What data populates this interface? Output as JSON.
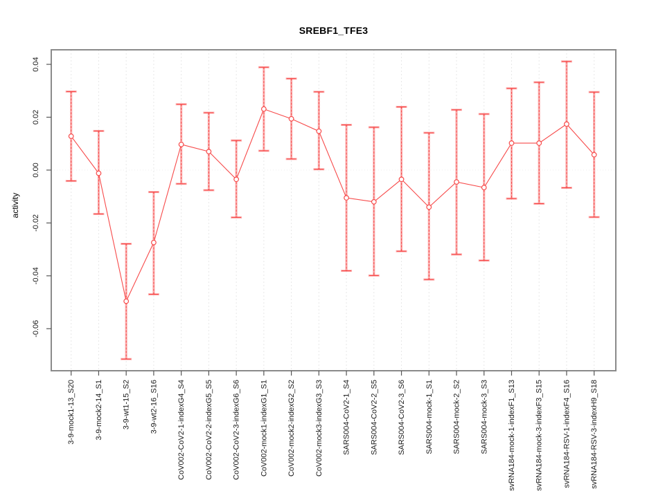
{
  "figure": {
    "title": "SREBF1_TFE3",
    "ylabel": "activity"
  },
  "chart_data": {
    "type": "line",
    "title": "SREBF1_TFE3",
    "xlabel": "",
    "ylabel": "activity",
    "legend_position": "none",
    "grid": "vertical dashed gridline at every category; dotted horizontal line at y=0",
    "marker": "open-circle with vertical error bars",
    "ylim": [
      -0.0759,
      0.0455
    ],
    "yticks": [
      0.04,
      0.02,
      0.0,
      -0.02,
      -0.04,
      -0.06
    ],
    "categories": [
      "3-9-mock1-13_S20",
      "3-9-mock2-14_S1",
      "3-9-wt1-15_S2",
      "3-9-wt2-16_S16",
      "CoV002-CoV2-1-indexG4_S4",
      "CoV002-CoV2-2-indexG5_S5",
      "CoV002-CoV2-3-indexG6_S6",
      "CoV002-mock1-indexG1_S1",
      "CoV002-mock2-indexG2_S2",
      "CoV002-mock3-indexG3_S3",
      "SARS004-CoV2-1_S4",
      "SARS004-CoV2-2_S5",
      "SARS004-CoV2-3_S6",
      "SARS004-mock-1_S1",
      "SARS004-mock-2_S2",
      "SARS004-mock-3_S3",
      "svRNA184-mock-1-indexF1_S13",
      "svRNA184-mock-3-indexF3_S15",
      "svRNA184-RSV-1-indexF4_S16",
      "svRNA184-RSV-3-indexH9_S18"
    ],
    "series": [
      {
        "name": "activity",
        "values": [
          0.0128,
          -0.0012,
          -0.0496,
          -0.0274,
          0.0097,
          0.007,
          -0.0035,
          0.0231,
          0.0194,
          0.0147,
          -0.0105,
          -0.012,
          -0.0035,
          -0.014,
          -0.0045,
          -0.0066,
          0.0102,
          0.0102,
          0.0174,
          0.0058
        ],
        "err_high": [
          0.0297,
          0.0148,
          -0.0279,
          -0.0083,
          0.0249,
          0.0217,
          0.0112,
          0.0389,
          0.0346,
          0.0296,
          0.0171,
          0.0162,
          0.0239,
          0.0141,
          0.0228,
          0.0212,
          0.0309,
          0.0332,
          0.0411,
          0.0295
        ],
        "err_low": [
          -0.0041,
          -0.0166,
          -0.0715,
          -0.047,
          -0.0052,
          -0.0076,
          -0.0179,
          0.0073,
          0.0042,
          0.0003,
          -0.0381,
          -0.0399,
          -0.0307,
          -0.0414,
          -0.0319,
          -0.0342,
          -0.0108,
          -0.0127,
          -0.0067,
          -0.0178
        ]
      }
    ],
    "colors": {
      "series": "#f74a4a",
      "errorbar_light": "rgba(247,74,74,0.42)",
      "grid": "#e7e7e7",
      "zero_line": "#ededed",
      "frame": "#8a8a8a",
      "tick": "#555555",
      "text": "#1a1a1a"
    }
  }
}
